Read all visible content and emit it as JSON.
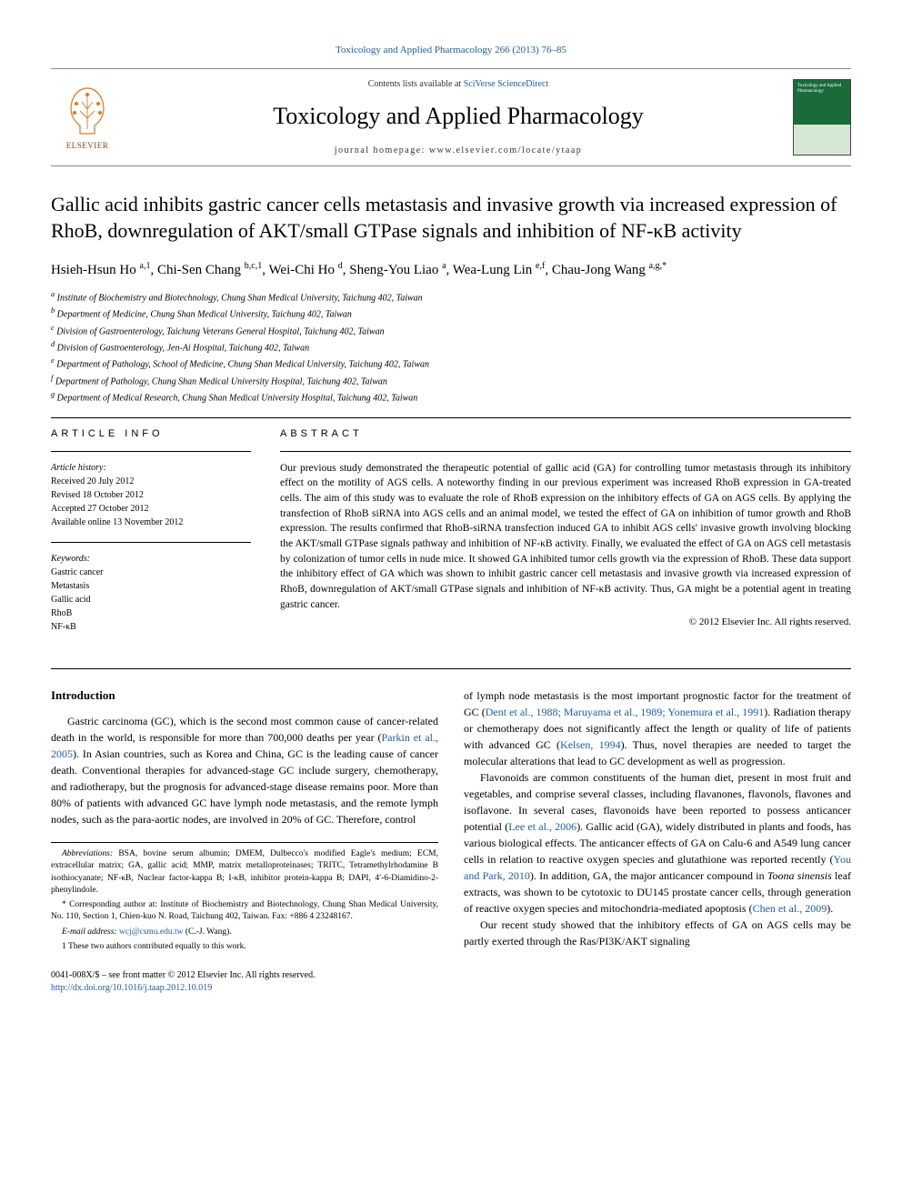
{
  "top_link": {
    "prefix": "",
    "text": "Toxicology and Applied Pharmacology 266 (2013) 76–85"
  },
  "header": {
    "contents_prefix": "Contents lists available at ",
    "contents_link": "SciVerse ScienceDirect",
    "journal_name": "Toxicology and Applied Pharmacology",
    "homepage_prefix": "journal homepage: ",
    "homepage_url": "www.elsevier.com/locate/ytaap",
    "elsevier_label": "ELSEVIER",
    "cover_text": "Toxicology and Applied Pharmacology"
  },
  "article": {
    "title": "Gallic acid inhibits gastric cancer cells metastasis and invasive growth via increased expression of RhoB, downregulation of AKT/small GTPase signals and inhibition of NF-κB activity",
    "authors_html": "Hsieh-Hsun Ho <sup>a,1</sup>, Chi-Sen Chang <sup>b,c,1</sup>, Wei-Chi Ho <sup>d</sup>, Sheng-You Liao <sup>a</sup>, Wea-Lung Lin <sup>e,f</sup>, Chau-Jong Wang <sup>a,g,*</sup>",
    "affiliations": [
      "a Institute of Biochemistry and Biotechnology, Chung Shan Medical University, Taichung 402, Taiwan",
      "b Department of Medicine, Chung Shan Medical University, Taichung 402, Taiwan",
      "c Division of Gastroenterology, Taichung Veterans General Hospital, Taichung 402, Taiwan",
      "d Division of Gastroenterology, Jen-Ai Hospital, Taichung 402, Taiwan",
      "e Department of Pathology, School of Medicine, Chung Shan Medical University, Taichung 402, Taiwan",
      "f Department of Pathology, Chung Shan Medical University Hospital, Taichung 402, Taiwan",
      "g Department of Medical Research, Chung Shan Medical University Hospital, Taichung 402, Taiwan"
    ]
  },
  "info": {
    "heading": "ARTICLE INFO",
    "history_label": "Article history:",
    "history": [
      "Received 20 July 2012",
      "Revised 18 October 2012",
      "Accepted 27 October 2012",
      "Available online 13 November 2012"
    ],
    "keywords_label": "Keywords:",
    "keywords": [
      "Gastric cancer",
      "Metastasis",
      "Gallic acid",
      "RhoB",
      "NF-κB"
    ]
  },
  "abstract": {
    "heading": "ABSTRACT",
    "text": "Our previous study demonstrated the therapeutic potential of gallic acid (GA) for controlling tumor metastasis through its inhibitory effect on the motility of AGS cells. A noteworthy finding in our previous experiment was increased RhoB expression in GA-treated cells. The aim of this study was to evaluate the role of RhoB expression on the inhibitory effects of GA on AGS cells. By applying the transfection of RhoB siRNA into AGS cells and an animal model, we tested the effect of GA on inhibition of tumor growth and RhoB expression. The results confirmed that RhoB-siRNA transfection induced GA to inhibit AGS cells' invasive growth involving blocking the AKT/small GTPase signals pathway and inhibition of NF-κB activity. Finally, we evaluated the effect of GA on AGS cell metastasis by colonization of tumor cells in nude mice. It showed GA inhibited tumor cells growth via the expression of RhoB. These data support the inhibitory effect of GA which was shown to inhibit gastric cancer cell metastasis and invasive growth via increased expression of RhoB, downregulation of AKT/small GTPase signals and inhibition of NF-κB activity. Thus, GA might be a potential agent in treating gastric cancer.",
    "copyright": "© 2012 Elsevier Inc. All rights reserved."
  },
  "body": {
    "intro_heading": "Introduction",
    "col1_p1_a": "Gastric carcinoma (GC), which is the second most common cause of cancer-related death in the world, is responsible for more than 700,000 deaths per year (",
    "col1_p1_ref1": "Parkin et al., 2005",
    "col1_p1_b": "). In Asian countries, such as Korea and China, GC is the leading cause of cancer death. Conventional therapies for advanced-stage GC include surgery, chemotherapy, and radiotherapy, but the prognosis for advanced-stage disease remains poor. More than 80% of patients with advanced GC have lymph node metastasis, and the remote lymph nodes, such as the para-aortic nodes, are involved in 20% of GC. Therefore, control",
    "col2_p1_a": "of lymph node metastasis is the most important prognostic factor for the treatment of GC (",
    "col2_p1_ref1": "Dent et al., 1988; Maruyama et al., 1989; Yonemura et al., 1991",
    "col2_p1_b": "). Radiation therapy or chemotherapy does not significantly affect the length or quality of life of patients with advanced GC (",
    "col2_p1_ref2": "Kelsen, 1994",
    "col2_p1_c": "). Thus, novel therapies are needed to target the molecular alterations that lead to GC development as well as progression.",
    "col2_p2_a": "Flavonoids are common constituents of the human diet, present in most fruit and vegetables, and comprise several classes, including flavanones, flavonols, flavones and isoflavone. In several cases, flavonoids have been reported to possess anticancer potential (",
    "col2_p2_ref1": "Lee et al., 2006",
    "col2_p2_b": "). Gallic acid (GA), widely distributed in plants and foods, has various biological effects. The anticancer effects of GA on Calu-6 and A549 lung cancer cells in relation to reactive oxygen species and glutathione was reported recently (",
    "col2_p2_ref2": "You and Park, 2010",
    "col2_p2_c": "). In addition, GA, the major anticancer compound in ",
    "col2_p2_italic": "Toona sinensis",
    "col2_p2_d": " leaf extracts, was shown to be cytotoxic to DU145 prostate cancer cells, through generation of reactive oxygen species and mitochondria-mediated apoptosis (",
    "col2_p2_ref3": "Chen et al., 2009",
    "col2_p2_e": ").",
    "col2_p3": "Our recent study showed that the inhibitory effects of GA on AGS cells may be partly exerted through the Ras/PI3K/AKT signaling"
  },
  "footnotes": {
    "abbrev_label": "Abbreviations:",
    "abbrev_text": " BSA, bovine serum albumin; DMEM, Dulbecco's modified Eagle's medium; ECM, extracellular matrix; GA, gallic acid; MMP, matrix metalloproteinases; TRITC, Tetramethylrhodamine B isothiocyanate; NF-κB, Nuclear factor-kappa B; I-κB, inhibitor protein-kappa B; DAPI, 4′-6-Diamidino-2-phenylindole.",
    "corresponding": "* Corresponding author at: Institute of Biochemistry and Biotechnology, Chung Shan Medical University, No. 110, Section 1, Chien-kuo N. Road, Taichung 402, Taiwan. Fax: +886 4 23248167.",
    "email_label": "E-mail address:",
    "email": " wcj@csmu.edu.tw",
    "email_suffix": " (C.-J. Wang).",
    "equal": "1 These two authors contributed equally to this work."
  },
  "footer": {
    "line1": "0041-008X/$ – see front matter © 2012 Elsevier Inc. All rights reserved.",
    "doi": "http://dx.doi.org/10.1016/j.taap.2012.10.019"
  },
  "colors": {
    "link": "#1a5fb4",
    "text": "#000000",
    "elsevier_orange": "#e67817",
    "cover_green": "#1a6b3a"
  }
}
